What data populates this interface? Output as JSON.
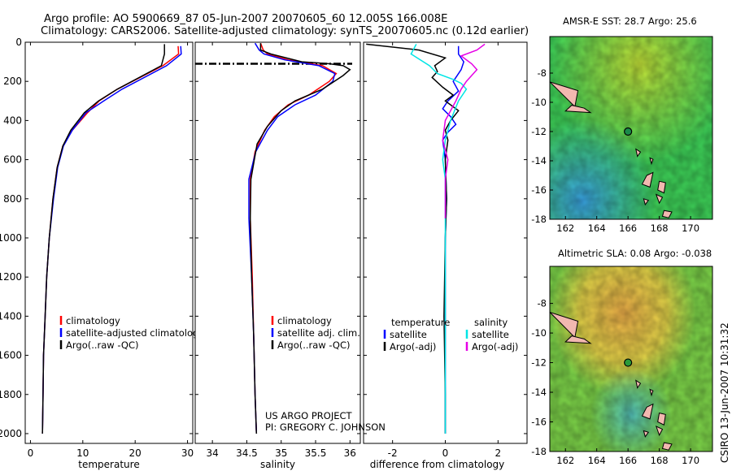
{
  "header": {
    "title_line1": "Argo profile: AO 5900669_87 05-Jun-2007 20070605_60 12.005S 166.008E",
    "title_line2": "Climatology: CARS2006. Satellite-adjusted climatology: synTS_20070605.nc (0.12d earlier)"
  },
  "side_stamp": "CSIRO 13-Jun-2007 10:31:32",
  "project": {
    "line1": "US ARGO PROJECT",
    "line2": "PI: GREGORY C. JOHNSON"
  },
  "colors": {
    "climatology": "#ff0000",
    "satellite": "#0000ff",
    "argo": "#000000",
    "sat_sal": "#00e5e5",
    "argo_sal": "#e600e6"
  },
  "chart_data": [
    {
      "id": "temperature",
      "type": "line",
      "xlabel": "temperature",
      "ylabel": "",
      "xlim": [
        -1,
        31
      ],
      "ylim": [
        2050,
        0
      ],
      "xticks": [
        0,
        10,
        20,
        30
      ],
      "yticks": [
        0,
        200,
        400,
        600,
        800,
        1000,
        1200,
        1400,
        1600,
        1800,
        2000
      ],
      "legend": [
        "climatology",
        "satellite-adjusted climatology",
        "Argo(..raw -QC)"
      ],
      "series": [
        {
          "name": "climatology",
          "color": "#ff0000",
          "x": [
            28.2,
            28.3,
            25.3,
            16.6,
            13.1,
            10.9,
            8.0,
            6.2,
            5.1,
            4.3,
            3.6,
            3.1,
            2.8,
            2.5,
            2.4,
            2.3
          ],
          "y": [
            20,
            60,
            120,
            240,
            300,
            360,
            450,
            530,
            640,
            800,
            1000,
            1200,
            1400,
            1600,
            1800,
            2000
          ]
        },
        {
          "name": "satellite-adjusted climatology",
          "color": "#0000ff",
          "x": [
            28.7,
            28.8,
            26.0,
            17.5,
            14.0,
            10.6,
            8.0,
            6.3,
            5.2,
            4.4,
            3.6,
            3.1,
            2.8,
            2.5,
            2.4,
            2.3
          ],
          "y": [
            20,
            60,
            120,
            240,
            300,
            360,
            450,
            530,
            640,
            800,
            1000,
            1200,
            1400,
            1600,
            1800,
            2000
          ]
        },
        {
          "name": "Argo(..raw -QC)",
          "color": "#000000",
          "x": [
            25.6,
            25.6,
            25.0,
            16.6,
            13.0,
            10.3,
            7.7,
            6.2,
            5.1,
            4.3,
            3.6,
            3.1,
            2.8,
            2.5,
            2.4,
            2.3
          ],
          "y": [
            10,
            60,
            120,
            240,
            300,
            360,
            450,
            530,
            640,
            800,
            1000,
            1200,
            1400,
            1600,
            1800,
            2000
          ]
        }
      ]
    },
    {
      "id": "salinity",
      "type": "line",
      "xlabel": "salinity",
      "xlim": [
        33.75,
        36.15
      ],
      "ylim": [
        2050,
        0
      ],
      "xticks": [
        34,
        34.5,
        35,
        35.5,
        36
      ],
      "legend": [
        "climatology",
        "satellite adj. clim.",
        "Argo(..raw -QC)"
      ],
      "series": [
        {
          "name": "climatology",
          "color": "#ff0000",
          "x": [
            34.7,
            34.74,
            34.8,
            35.1,
            35.6,
            35.8,
            35.7,
            35.4,
            35.1,
            34.9,
            34.76,
            34.62,
            34.55,
            34.55,
            34.58,
            34.6,
            34.62,
            34.64
          ],
          "y": [
            5,
            40,
            60,
            90,
            120,
            160,
            200,
            270,
            320,
            380,
            450,
            560,
            700,
            900,
            1200,
            1500,
            1800,
            2000
          ]
        },
        {
          "name": "satellite adj. clim.",
          "color": "#0000ff",
          "x": [
            34.62,
            34.68,
            34.75,
            35.05,
            35.55,
            35.78,
            35.75,
            35.5,
            35.2,
            34.95,
            34.8,
            34.63,
            34.53,
            34.53,
            34.57,
            34.6,
            34.62,
            34.64
          ],
          "y": [
            5,
            40,
            60,
            90,
            120,
            160,
            200,
            270,
            320,
            380,
            450,
            560,
            700,
            900,
            1200,
            1500,
            1800,
            2000
          ]
        },
        {
          "name": "Argo(..raw -QC)",
          "color": "#000000",
          "x": [
            34.7,
            34.7,
            34.85,
            35.3,
            35.7,
            35.9,
            36.0,
            35.9,
            35.6,
            35.2,
            35.0,
            34.8,
            34.65,
            34.56,
            34.55,
            34.57,
            34.6,
            34.62,
            34.64
          ],
          "y": [
            5,
            40,
            60,
            100,
            110,
            120,
            140,
            170,
            240,
            300,
            350,
            430,
            520,
            700,
            900,
            1200,
            1500,
            1800,
            2000
          ]
        }
      ],
      "mixed_layer_depth": 110
    },
    {
      "id": "difference",
      "type": "line",
      "xlabel": "difference from climatology",
      "xlim": [
        -3.1,
        3.1
      ],
      "ylim": [
        2050,
        0
      ],
      "xticks": [
        -2,
        0,
        2
      ],
      "legend_temperature": {
        "heading": "temperature",
        "items": [
          "satellite",
          "Argo(-adj)"
        ]
      },
      "legend_salinity": {
        "heading": "salinity",
        "items": [
          "satellite",
          "Argo(-adj)"
        ]
      },
      "series": [
        {
          "name": "temperature satellite",
          "color": "#0000ff",
          "x": [
            0.5,
            0.5,
            0.7,
            0.6,
            0.4,
            0.3,
            0.5,
            0.1,
            -0.1,
            0.2,
            0.4,
            0.1,
            -0.1,
            0.0,
            0.05,
            0.0,
            0.0,
            0.0,
            0.0
          ],
          "y": [
            20,
            60,
            100,
            140,
            180,
            200,
            250,
            300,
            340,
            380,
            420,
            460,
            500,
            600,
            800,
            1000,
            1400,
            1800,
            2000
          ]
        },
        {
          "name": "temperature Argo(-adj)",
          "color": "#000000",
          "x": [
            -3.0,
            -1.0,
            0.0,
            -0.4,
            -0.3,
            -0.5,
            -0.1,
            0.3,
            0.0,
            0.5,
            0.2,
            0.0,
            0.1,
            0.0,
            0.05,
            0.0,
            -0.05,
            0.0,
            0.0
          ],
          "y": [
            10,
            40,
            80,
            120,
            150,
            180,
            230,
            270,
            300,
            350,
            400,
            450,
            500,
            600,
            800,
            1000,
            1400,
            1800,
            2000
          ]
        },
        {
          "name": "salinity satellite",
          "color": "#00e5e5",
          "x": [
            -1.1,
            -1.3,
            -0.6,
            -0.3,
            0.3,
            0.6,
            0.8,
            0.5,
            0.2,
            0.0,
            -0.1,
            0.0,
            0.0,
            0.0,
            0.0
          ],
          "y": [
            10,
            60,
            120,
            160,
            190,
            210,
            240,
            300,
            400,
            500,
            600,
            700,
            1000,
            1500,
            2000
          ]
        },
        {
          "name": "salinity Argo(-adj)",
          "color": "#e600e6",
          "x": [
            1.5,
            1.2,
            0.6,
            1.0,
            1.2,
            1.0,
            0.8,
            0.6,
            0.4,
            0.0,
            -0.1,
            0.1,
            0.0,
            0.0,
            0.0
          ],
          "y": [
            10,
            40,
            70,
            110,
            140,
            170,
            200,
            240,
            300,
            400,
            500,
            600,
            700,
            800,
            900
          ]
        }
      ]
    }
  ],
  "maps": [
    {
      "title": "AMSR-E SST: 28.7 Argo: 25.6",
      "xlim": [
        161,
        171.4
      ],
      "ylim": [
        -18,
        -5.5
      ],
      "xticks": [
        162,
        164,
        166,
        168,
        170
      ],
      "yticks": [
        -8,
        -10,
        -12,
        -14,
        -16,
        -18
      ],
      "marker": {
        "lon": 166.0,
        "lat": -12.0
      }
    },
    {
      "title": "Altimetric SLA: 0.08 Argo: -0.038",
      "xlim": [
        161,
        171.4
      ],
      "ylim": [
        -18,
        -5.5
      ],
      "xticks": [
        162,
        164,
        166,
        168,
        170
      ],
      "yticks": [
        -8,
        -10,
        -12,
        -14,
        -16,
        -18
      ],
      "marker": {
        "lon": 166.0,
        "lat": -12.0
      }
    }
  ]
}
